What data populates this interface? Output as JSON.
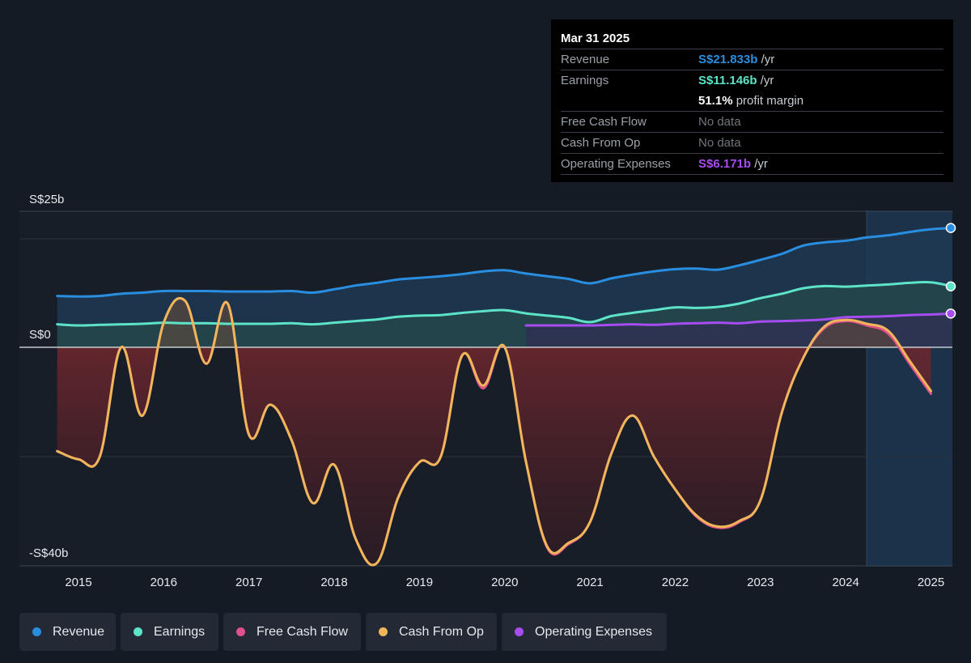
{
  "chart_data": {
    "type": "area",
    "y_axis_labels": [
      "S$25b",
      "S$0",
      "-S$40b"
    ],
    "ylim": [
      -40,
      25
    ],
    "x_ticks": [
      "2015",
      "2016",
      "2017",
      "2018",
      "2019",
      "2020",
      "2021",
      "2022",
      "2023",
      "2024",
      "2025"
    ],
    "series": [
      {
        "name": "Revenue",
        "color": "#2a8ee0",
        "x": [
          2014.75,
          2015.0,
          2015.25,
          2015.5,
          2015.75,
          2016.0,
          2016.25,
          2016.5,
          2016.75,
          2017.0,
          2017.25,
          2017.5,
          2017.75,
          2018.0,
          2018.25,
          2018.5,
          2018.75,
          2019.0,
          2019.25,
          2019.5,
          2019.75,
          2020.0,
          2020.25,
          2020.5,
          2020.75,
          2021.0,
          2021.25,
          2021.5,
          2021.75,
          2022.0,
          2022.25,
          2022.5,
          2022.75,
          2023.0,
          2023.25,
          2023.5,
          2023.75,
          2024.0,
          2024.25,
          2024.5,
          2024.75,
          2025.0,
          2025.25
        ],
        "values": [
          9.4,
          9.3,
          9.4,
          9.8,
          10.0,
          10.3,
          10.3,
          10.3,
          10.2,
          10.2,
          10.2,
          10.3,
          10.0,
          10.6,
          11.3,
          11.8,
          12.4,
          12.7,
          13.0,
          13.4,
          13.9,
          14.1,
          13.5,
          13.0,
          12.5,
          11.7,
          12.6,
          13.3,
          13.9,
          14.3,
          14.4,
          14.2,
          15.0,
          16.0,
          17.1,
          18.6,
          19.2,
          19.5,
          20.1,
          20.5,
          21.1,
          21.6,
          21.833
        ]
      },
      {
        "name": "Earnings",
        "color": "#5de3c8",
        "x": [
          2014.75,
          2015.0,
          2015.25,
          2015.5,
          2015.75,
          2016.0,
          2016.25,
          2016.5,
          2016.75,
          2017.0,
          2017.25,
          2017.5,
          2017.75,
          2018.0,
          2018.25,
          2018.5,
          2018.75,
          2019.0,
          2019.25,
          2019.5,
          2019.75,
          2020.0,
          2020.25,
          2020.5,
          2020.75,
          2021.0,
          2021.25,
          2021.5,
          2021.75,
          2022.0,
          2022.25,
          2022.5,
          2022.75,
          2023.0,
          2023.25,
          2023.5,
          2023.75,
          2024.0,
          2024.25,
          2024.5,
          2024.75,
          2025.0,
          2025.25
        ],
        "values": [
          4.2,
          4.0,
          4.1,
          4.2,
          4.3,
          4.5,
          4.4,
          4.4,
          4.3,
          4.3,
          4.3,
          4.4,
          4.2,
          4.5,
          4.8,
          5.1,
          5.6,
          5.8,
          5.9,
          6.3,
          6.6,
          6.8,
          6.2,
          5.8,
          5.4,
          4.6,
          5.7,
          6.3,
          6.8,
          7.3,
          7.2,
          7.4,
          8.0,
          9.0,
          9.8,
          10.8,
          11.2,
          11.1,
          11.3,
          11.5,
          11.8,
          11.9,
          11.146
        ]
      },
      {
        "name": "Free Cash Flow",
        "color": "#e0508a",
        "x": [
          2014.75,
          2015.0,
          2015.25,
          2015.5,
          2015.75,
          2016.0,
          2016.25,
          2016.5,
          2016.75,
          2017.0,
          2017.25,
          2017.5,
          2017.75,
          2018.0,
          2018.25,
          2018.5,
          2018.75,
          2019.0,
          2019.25,
          2019.5,
          2019.75,
          2020.0,
          2020.25,
          2020.5,
          2020.75,
          2021.0,
          2021.25,
          2021.5,
          2021.75,
          2022.0,
          2022.25,
          2022.5,
          2022.75,
          2023.0,
          2023.25,
          2023.5,
          2023.75,
          2024.0,
          2024.25,
          2024.5,
          2024.75,
          2025.0
        ],
        "values": [
          -19.0,
          -20.5,
          -20.0,
          0.0,
          -12.5,
          4.5,
          8.5,
          -3.0,
          8.0,
          -16.0,
          -10.5,
          -17.0,
          -28.5,
          -21.5,
          -35.0,
          -39.5,
          -27.5,
          -21.0,
          -20.0,
          -1.5,
          -7.5,
          0.0,
          -21.0,
          -36.7,
          -36.0,
          -32.0,
          -19.5,
          -12.5,
          -20.0,
          -26.0,
          -31.0,
          -33.0,
          -32.0,
          -28.0,
          -12.0,
          -2.0,
          3.5,
          4.8,
          4.0,
          2.5,
          -3.0,
          -8.5
        ]
      },
      {
        "name": "Cash From Op",
        "color": "#f0b65a",
        "x": [
          2014.75,
          2015.0,
          2015.25,
          2015.5,
          2015.75,
          2016.0,
          2016.25,
          2016.5,
          2016.75,
          2017.0,
          2017.25,
          2017.5,
          2017.75,
          2018.0,
          2018.25,
          2018.5,
          2018.75,
          2019.0,
          2019.25,
          2019.5,
          2019.75,
          2020.0,
          2020.25,
          2020.5,
          2020.75,
          2021.0,
          2021.25,
          2021.5,
          2021.75,
          2022.0,
          2022.25,
          2022.5,
          2022.75,
          2023.0,
          2023.25,
          2023.5,
          2023.75,
          2024.0,
          2024.25,
          2024.5,
          2024.75,
          2025.0
        ],
        "values": [
          -19.0,
          -20.5,
          -20.0,
          0.0,
          -12.5,
          4.5,
          8.5,
          -3.0,
          8.0,
          -16.0,
          -10.5,
          -17.0,
          -28.5,
          -21.5,
          -35.0,
          -39.5,
          -27.5,
          -21.0,
          -20.0,
          -1.5,
          -7.0,
          0.0,
          -21.0,
          -36.5,
          -35.8,
          -32.0,
          -19.5,
          -12.5,
          -20.0,
          -26.0,
          -30.8,
          -32.8,
          -31.8,
          -28.0,
          -12.0,
          -2.0,
          3.8,
          5.0,
          4.3,
          3.0,
          -2.5,
          -8.0
        ]
      },
      {
        "name": "Operating Expenses",
        "color": "#a64cf0",
        "x": [
          2020.25,
          2020.5,
          2020.75,
          2021.0,
          2021.25,
          2021.5,
          2021.75,
          2022.0,
          2022.25,
          2022.5,
          2022.75,
          2023.0,
          2023.25,
          2023.5,
          2023.75,
          2024.0,
          2024.25,
          2024.5,
          2024.75,
          2025.0,
          2025.25
        ],
        "values": [
          4.0,
          4.0,
          4.0,
          4.0,
          4.1,
          4.2,
          4.1,
          4.3,
          4.4,
          4.5,
          4.4,
          4.7,
          4.8,
          4.9,
          5.1,
          5.5,
          5.6,
          5.7,
          5.9,
          6.0,
          6.171
        ]
      }
    ]
  },
  "tooltip": {
    "date": "Mar 31 2025",
    "revenue_label": "Revenue",
    "revenue_value": "S$21.833b",
    "revenue_unit": "/yr",
    "earnings_label": "Earnings",
    "earnings_value": "S$11.146b",
    "earnings_unit": "/yr",
    "margin_value": "51.1%",
    "margin_label": "profit margin",
    "fcf_label": "Free Cash Flow",
    "fcf_value": "No data",
    "cfo_label": "Cash From Op",
    "cfo_value": "No data",
    "opex_label": "Operating Expenses",
    "opex_value": "S$6.171b",
    "opex_unit": "/yr"
  },
  "legend": [
    {
      "label": "Revenue",
      "color": "#2a8ee0"
    },
    {
      "label": "Earnings",
      "color": "#5de3c8"
    },
    {
      "label": "Free Cash Flow",
      "color": "#e0508a"
    },
    {
      "label": "Cash From Op",
      "color": "#f0b65a"
    },
    {
      "label": "Operating Expenses",
      "color": "#a64cf0"
    }
  ]
}
